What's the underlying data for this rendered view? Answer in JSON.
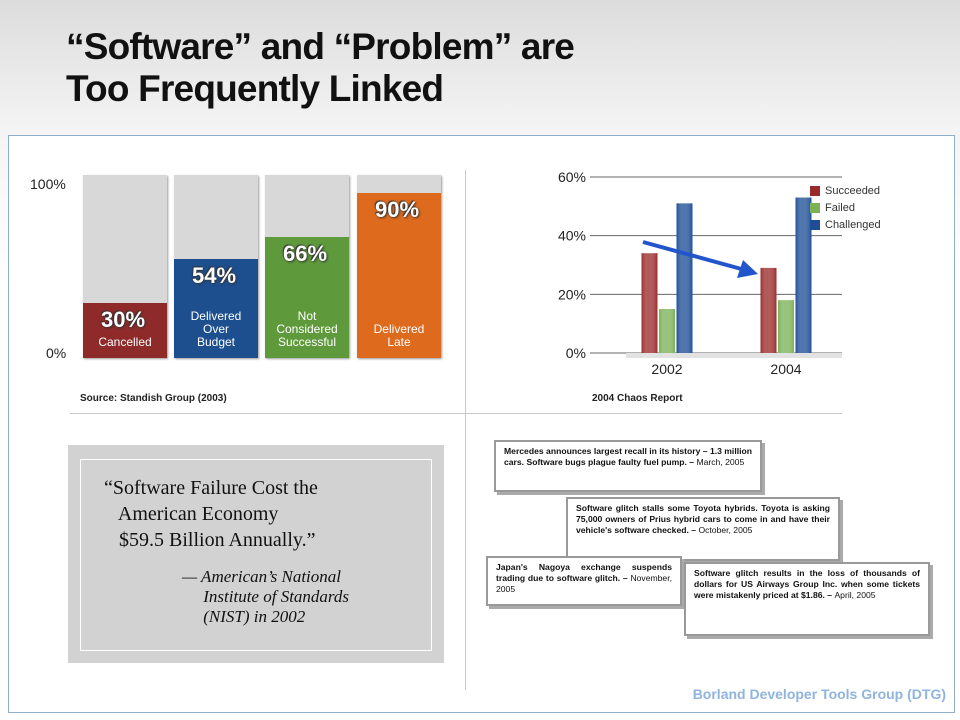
{
  "title_line1": "“Software” and “Problem” are",
  "title_line2": "Too Frequently Linked",
  "footer": "Borland Developer Tools Group (DTG)",
  "colors": {
    "cancelled": "#8e2a2a",
    "over_budget": "#1d4f8f",
    "not_successful": "#5e9a3c",
    "late": "#de6a1e",
    "succeeded": "#9a2b2b",
    "failed": "#7bb257",
    "challenged": "#1e4e96",
    "arrow": "#2255cc"
  },
  "chart_data": [
    {
      "type": "bar",
      "ylim": [
        0,
        100
      ],
      "ytick_labels": [
        "100%",
        "0%"
      ],
      "categories": [
        "Cancelled",
        "Delivered Over Budget",
        "Not Considered Successful",
        "Delivered Late"
      ],
      "category_lines": [
        [
          "Cancelled"
        ],
        [
          "Delivered",
          "Over",
          "Budget"
        ],
        [
          "Not",
          "Considered",
          "Successful"
        ],
        [
          "Delivered",
          "Late"
        ]
      ],
      "values": [
        30,
        54,
        66,
        90
      ],
      "value_labels": [
        "30%",
        "54%",
        "66%",
        "90%"
      ],
      "source": "Source: Standish Group (2003)"
    },
    {
      "type": "bar",
      "categories": [
        "2002",
        "2004"
      ],
      "series": [
        {
          "name": "Succeeded",
          "values": [
            34,
            29
          ]
        },
        {
          "name": "Failed",
          "values": [
            15,
            18
          ]
        },
        {
          "name": "Challenged",
          "values": [
            51,
            53
          ]
        }
      ],
      "ylim": [
        0,
        60
      ],
      "ytick_labels": [
        "60%",
        "40%",
        "20%",
        "0%"
      ],
      "grid": true,
      "legend": "top-right",
      "source": "2004 Chaos Report"
    }
  ],
  "quote": {
    "text": "“Software Failure Cost the\n   American Economy\n   $59.5 Billion Annually.”",
    "attribution": "— American’s National\n     Institute of Standards\n     (NIST) in 2002"
  },
  "clippings": [
    {
      "text": "Mercedes announces largest recall in its history – 1.3 million cars. Software bugs plague faulty fuel pump. –",
      "date": "March, 2005"
    },
    {
      "text": "Software glitch stalls some Toyota hybrids. Toyota is asking 75,000 owners of Prius hybrid cars to come in and have their vehicle's software checked. –",
      "date": "October, 2005"
    },
    {
      "text": "Japan's Nagoya exchange suspends trading due to software glitch. –",
      "date": "November, 2005"
    },
    {
      "text": "Software glitch results in the loss of thousands of dollars for US Airways Group Inc. when some tickets were mistakenly priced at $1.86. –",
      "date": "April, 2005"
    }
  ]
}
